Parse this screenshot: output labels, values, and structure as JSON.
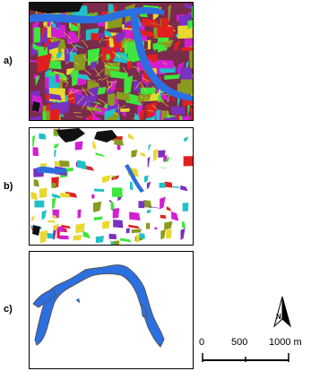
{
  "panels": [
    {
      "label": "a)"
    },
    {
      "label": "b)"
    },
    {
      "label": "c)"
    }
  ],
  "north_arrow": {
    "letter": "N"
  },
  "scale_bar": {
    "labels": [
      "0",
      "500",
      "1000 m"
    ]
  },
  "colors": {
    "water_blue": "#2c6fe0",
    "segment_magenta": "#d21fd2",
    "segment_green": "#3ee63e",
    "segment_red": "#e02020",
    "segment_yellow": "#e8d830",
    "segment_cyan": "#20c0c8",
    "segment_olive": "#8a9a20",
    "segment_purple": "#7a30c0",
    "outline_gray": "#555555"
  }
}
